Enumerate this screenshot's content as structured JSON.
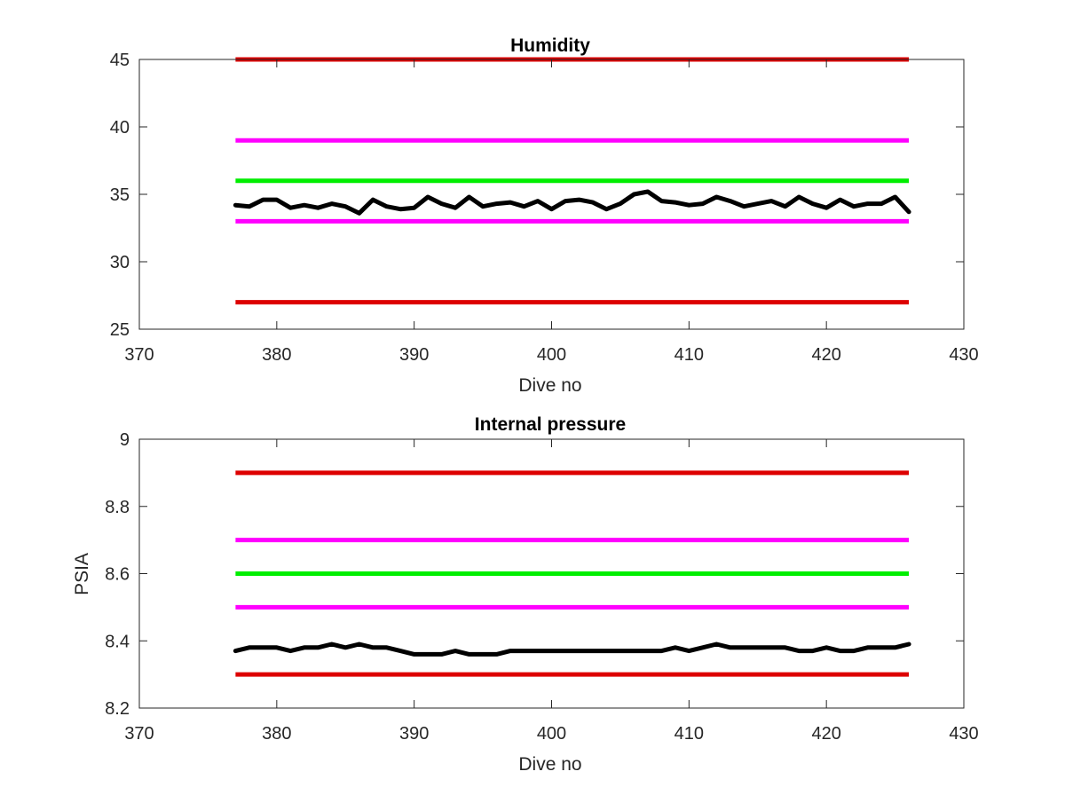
{
  "chart_data": [
    {
      "type": "line",
      "title": "Humidity",
      "xlabel": "Dive no",
      "ylabel": "",
      "xlim": [
        370,
        430
      ],
      "ylim": [
        25,
        45
      ],
      "xticks": [
        370,
        380,
        390,
        400,
        410,
        420,
        430
      ],
      "yticks": [
        25,
        30,
        35,
        40,
        45
      ],
      "grid": false,
      "x": [
        377,
        378,
        379,
        380,
        381,
        382,
        383,
        384,
        385,
        386,
        387,
        388,
        389,
        390,
        391,
        392,
        393,
        394,
        395,
        396,
        397,
        398,
        399,
        400,
        401,
        402,
        403,
        404,
        405,
        406,
        407,
        408,
        409,
        410,
        411,
        412,
        413,
        414,
        415,
        416,
        417,
        418,
        419,
        420,
        421,
        422,
        423,
        424,
        425,
        426
      ],
      "series": [
        {
          "color": "#000000",
          "width": 5,
          "values": [
            34.2,
            34.1,
            34.6,
            34.6,
            34.0,
            34.2,
            34.0,
            34.3,
            34.1,
            33.6,
            34.6,
            34.1,
            33.9,
            34.0,
            34.8,
            34.3,
            34.0,
            34.8,
            34.1,
            34.3,
            34.4,
            34.1,
            34.5,
            33.9,
            34.5,
            34.6,
            34.4,
            33.9,
            34.3,
            35.0,
            35.2,
            34.5,
            34.4,
            34.2,
            34.3,
            34.8,
            34.5,
            34.1,
            34.3,
            34.5,
            34.1,
            34.8,
            34.3,
            34.0,
            34.6,
            34.1,
            34.3,
            34.3,
            34.8,
            33.7
          ]
        }
      ],
      "hlines": [
        {
          "y": 45,
          "color": "#dd0000"
        },
        {
          "y": 39,
          "color": "#ff00ff"
        },
        {
          "y": 36,
          "color": "#00ee00"
        },
        {
          "y": 33,
          "color": "#ff00ff"
        },
        {
          "y": 27,
          "color": "#dd0000"
        }
      ],
      "hline_range": [
        377,
        426
      ]
    },
    {
      "type": "line",
      "title": "Internal pressure",
      "xlabel": "Dive no",
      "ylabel": "PSIA",
      "xlim": [
        370,
        430
      ],
      "ylim": [
        8.2,
        9
      ],
      "xticks": [
        370,
        380,
        390,
        400,
        410,
        420,
        430
      ],
      "yticks": [
        "8.2",
        "8.4",
        "8.6",
        "8.8",
        "9"
      ],
      "grid": false,
      "x": [
        377,
        378,
        379,
        380,
        381,
        382,
        383,
        384,
        385,
        386,
        387,
        388,
        389,
        390,
        391,
        392,
        393,
        394,
        395,
        396,
        397,
        398,
        399,
        400,
        401,
        402,
        403,
        404,
        405,
        406,
        407,
        408,
        409,
        410,
        411,
        412,
        413,
        414,
        415,
        416,
        417,
        418,
        419,
        420,
        421,
        422,
        423,
        424,
        425,
        426
      ],
      "series": [
        {
          "color": "#000000",
          "width": 5,
          "values": [
            8.37,
            8.38,
            8.38,
            8.38,
            8.37,
            8.38,
            8.38,
            8.39,
            8.38,
            8.39,
            8.38,
            8.38,
            8.37,
            8.36,
            8.36,
            8.36,
            8.37,
            8.36,
            8.36,
            8.36,
            8.37,
            8.37,
            8.37,
            8.37,
            8.37,
            8.37,
            8.37,
            8.37,
            8.37,
            8.37,
            8.37,
            8.37,
            8.38,
            8.37,
            8.38,
            8.39,
            8.38,
            8.38,
            8.38,
            8.38,
            8.38,
            8.37,
            8.37,
            8.38,
            8.37,
            8.37,
            8.38,
            8.38,
            8.38,
            8.39
          ]
        }
      ],
      "hlines": [
        {
          "y": 8.9,
          "color": "#dd0000"
        },
        {
          "y": 8.7,
          "color": "#ff00ff"
        },
        {
          "y": 8.6,
          "color": "#00ee00"
        },
        {
          "y": 8.5,
          "color": "#ff00ff"
        },
        {
          "y": 8.3,
          "color": "#dd0000"
        }
      ],
      "hline_range": [
        377,
        426
      ]
    }
  ]
}
